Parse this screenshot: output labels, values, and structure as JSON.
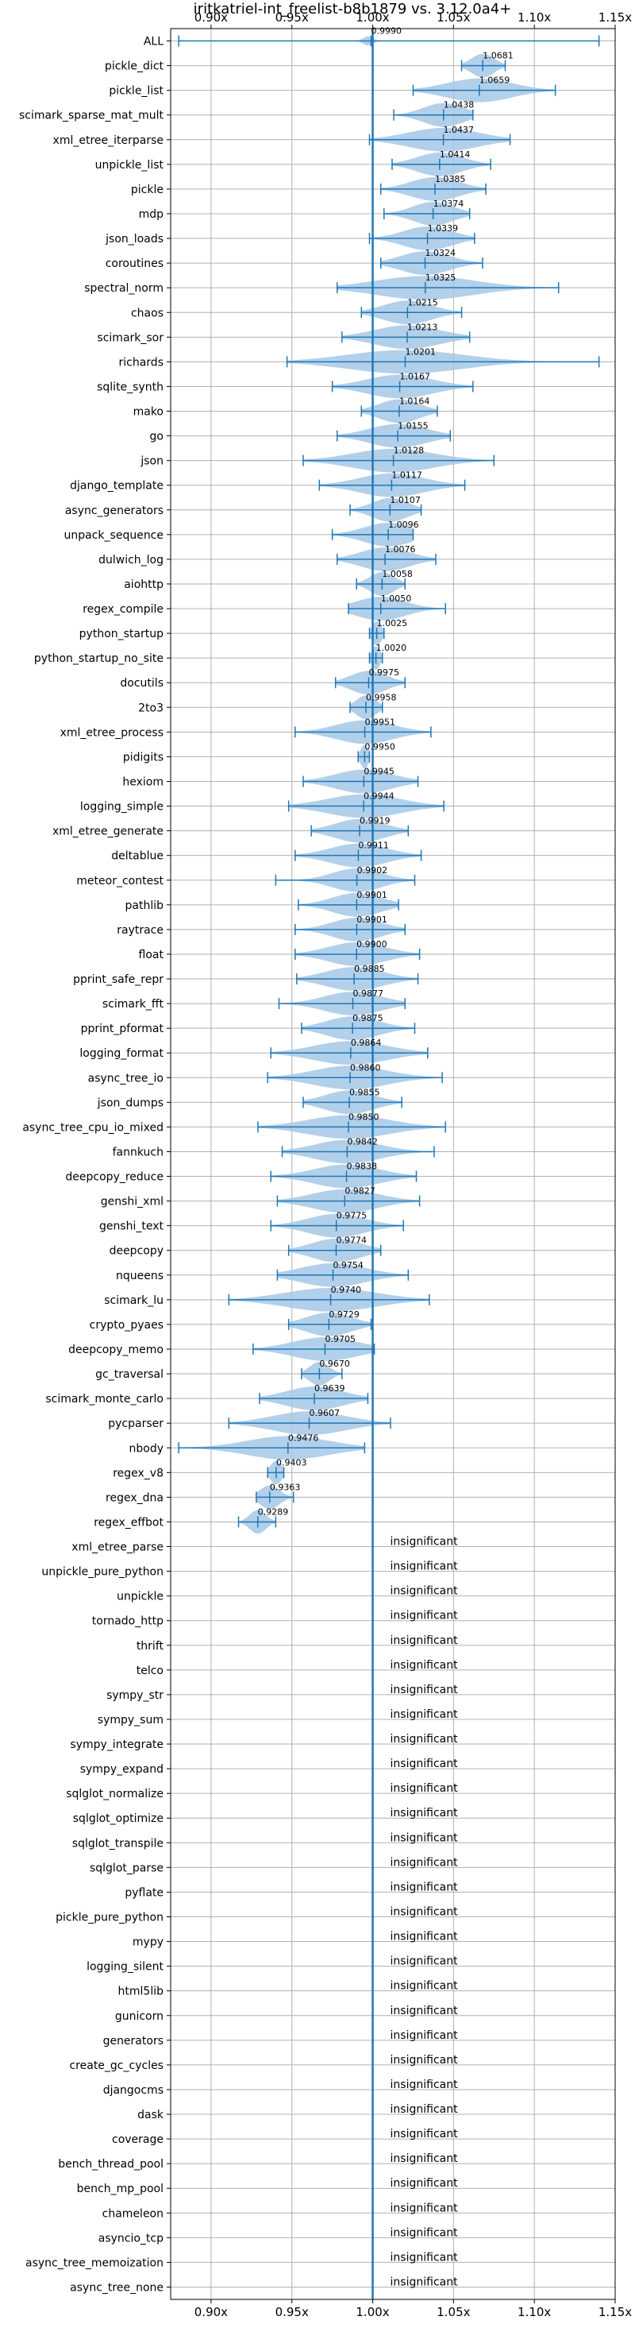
{
  "chart_data": {
    "type": "violin",
    "title": "iritkatriel-int_freelist-b8b1879 vs. 3.12.0a4+",
    "xlim": [
      0.875,
      1.15
    ],
    "x_ticks": [
      {
        "value": 0.9,
        "label": "0.90x"
      },
      {
        "value": 0.95,
        "label": "0.95x"
      },
      {
        "value": 1.0,
        "label": "1.00x"
      },
      {
        "value": 1.05,
        "label": "1.05x"
      },
      {
        "value": 1.1,
        "label": "1.10x"
      },
      {
        "value": 1.15,
        "label": "1.15x"
      }
    ],
    "reference_line": 1.0,
    "grid": true,
    "colors": {
      "line": "#1f77b4",
      "violin": "#a6c8e6",
      "grid": "#b0b0b0"
    },
    "insignificant_label": "insignificant",
    "benchmarks": [
      {
        "name": "ALL",
        "mean": 0.999,
        "label": "0.9990",
        "min": 0.88,
        "max": 1.14,
        "width": 0.003
      },
      {
        "name": "pickle_dict",
        "mean": 1.0681,
        "label": "1.0681",
        "min": 1.055,
        "max": 1.082,
        "width": 0.014
      },
      {
        "name": "pickle_list",
        "mean": 1.0659,
        "label": "1.0659",
        "min": 1.025,
        "max": 1.113,
        "width": 0.04
      },
      {
        "name": "scimark_sparse_mat_mult",
        "mean": 1.0438,
        "label": "1.0438",
        "min": 1.013,
        "max": 1.062,
        "width": 0.025
      },
      {
        "name": "xml_etree_iterparse",
        "mean": 1.0437,
        "label": "1.0437",
        "min": 0.998,
        "max": 1.085,
        "width": 0.043
      },
      {
        "name": "unpickle_list",
        "mean": 1.0414,
        "label": "1.0414",
        "min": 1.012,
        "max": 1.073,
        "width": 0.028
      },
      {
        "name": "pickle",
        "mean": 1.0385,
        "label": "1.0385",
        "min": 1.005,
        "max": 1.07,
        "width": 0.03
      },
      {
        "name": "mdp",
        "mean": 1.0374,
        "label": "1.0374",
        "min": 1.007,
        "max": 1.06,
        "width": 0.025
      },
      {
        "name": "json_loads",
        "mean": 1.0339,
        "label": "1.0339",
        "min": 0.998,
        "max": 1.063,
        "width": 0.03
      },
      {
        "name": "coroutines",
        "mean": 1.0324,
        "label": "1.0324",
        "min": 1.005,
        "max": 1.068,
        "width": 0.03
      },
      {
        "name": "spectral_norm",
        "mean": 1.0325,
        "label": "1.0325",
        "min": 0.978,
        "max": 1.115,
        "width": 0.06
      },
      {
        "name": "chaos",
        "mean": 1.0215,
        "label": "1.0215",
        "min": 0.993,
        "max": 1.055,
        "width": 0.03
      },
      {
        "name": "scimark_sor",
        "mean": 1.0213,
        "label": "1.0213",
        "min": 0.981,
        "max": 1.06,
        "width": 0.04
      },
      {
        "name": "richards",
        "mean": 1.0201,
        "label": "1.0201",
        "min": 0.947,
        "max": 1.14,
        "width": 0.07
      },
      {
        "name": "sqlite_synth",
        "mean": 1.0167,
        "label": "1.0167",
        "min": 0.975,
        "max": 1.062,
        "width": 0.04
      },
      {
        "name": "mako",
        "mean": 1.0164,
        "label": "1.0164",
        "min": 0.993,
        "max": 1.04,
        "width": 0.025
      },
      {
        "name": "go",
        "mean": 1.0155,
        "label": "1.0155",
        "min": 0.978,
        "max": 1.048,
        "width": 0.035
      },
      {
        "name": "json",
        "mean": 1.0128,
        "label": "1.0128",
        "min": 0.957,
        "max": 1.075,
        "width": 0.05
      },
      {
        "name": "django_template",
        "mean": 1.0117,
        "label": "1.0117",
        "min": 0.967,
        "max": 1.057,
        "width": 0.04
      },
      {
        "name": "async_generators",
        "mean": 1.0107,
        "label": "1.0107",
        "min": 0.986,
        "max": 1.03,
        "width": 0.022
      },
      {
        "name": "unpack_sequence",
        "mean": 1.0096,
        "label": "1.0096",
        "min": 0.975,
        "max": 1.025,
        "width": 0.03
      },
      {
        "name": "dulwich_log",
        "mean": 1.0076,
        "label": "1.0076",
        "min": 0.978,
        "max": 1.039,
        "width": 0.03
      },
      {
        "name": "aiohttp",
        "mean": 1.0058,
        "label": "1.0058",
        "min": 0.99,
        "max": 1.02,
        "width": 0.015
      },
      {
        "name": "regex_compile",
        "mean": 1.005,
        "label": "1.0050",
        "min": 0.985,
        "max": 1.045,
        "width": 0.03
      },
      {
        "name": "python_startup",
        "mean": 1.0025,
        "label": "1.0025",
        "min": 0.998,
        "max": 1.007,
        "width": 0.006
      },
      {
        "name": "python_startup_no_site",
        "mean": 1.002,
        "label": "1.0020",
        "min": 0.998,
        "max": 1.006,
        "width": 0.005
      },
      {
        "name": "docutils",
        "mean": 0.9975,
        "label": "0.9975",
        "min": 0.977,
        "max": 1.02,
        "width": 0.022
      },
      {
        "name": "2to3",
        "mean": 0.9958,
        "label": "0.9958",
        "min": 0.986,
        "max": 1.006,
        "width": 0.012
      },
      {
        "name": "xml_etree_process",
        "mean": 0.9951,
        "label": "0.9951",
        "min": 0.952,
        "max": 1.036,
        "width": 0.035
      },
      {
        "name": "pidigits",
        "mean": 0.995,
        "label": "0.9950",
        "min": 0.991,
        "max": 0.998,
        "width": 0.005
      },
      {
        "name": "hexiom",
        "mean": 0.9945,
        "label": "0.9945",
        "min": 0.957,
        "max": 1.028,
        "width": 0.035
      },
      {
        "name": "logging_simple",
        "mean": 0.9944,
        "label": "0.9944",
        "min": 0.948,
        "max": 1.044,
        "width": 0.045
      },
      {
        "name": "xml_etree_generate",
        "mean": 0.9919,
        "label": "0.9919",
        "min": 0.962,
        "max": 1.022,
        "width": 0.03
      },
      {
        "name": "deltablue",
        "mean": 0.9911,
        "label": "0.9911",
        "min": 0.952,
        "max": 1.03,
        "width": 0.035
      },
      {
        "name": "meteor_contest",
        "mean": 0.9902,
        "label": "0.9902",
        "min": 0.94,
        "max": 1.026,
        "width": 0.03
      },
      {
        "name": "pathlib",
        "mean": 0.9901,
        "label": "0.9901",
        "min": 0.954,
        "max": 1.016,
        "width": 0.03
      },
      {
        "name": "raytrace",
        "mean": 0.9901,
        "label": "0.9901",
        "min": 0.952,
        "max": 1.02,
        "width": 0.03
      },
      {
        "name": "float",
        "mean": 0.99,
        "label": "0.9900",
        "min": 0.952,
        "max": 1.029,
        "width": 0.035
      },
      {
        "name": "pprint_safe_repr",
        "mean": 0.9885,
        "label": "0.9885",
        "min": 0.953,
        "max": 1.028,
        "width": 0.035
      },
      {
        "name": "scimark_fft",
        "mean": 0.9877,
        "label": "0.9877",
        "min": 0.942,
        "max": 1.02,
        "width": 0.035
      },
      {
        "name": "pprint_pformat",
        "mean": 0.9875,
        "label": "0.9875",
        "min": 0.956,
        "max": 1.026,
        "width": 0.032
      },
      {
        "name": "logging_format",
        "mean": 0.9864,
        "label": "0.9864",
        "min": 0.937,
        "max": 1.034,
        "width": 0.045
      },
      {
        "name": "async_tree_io",
        "mean": 0.986,
        "label": "0.9860",
        "min": 0.935,
        "max": 1.043,
        "width": 0.045
      },
      {
        "name": "json_dumps",
        "mean": 0.9855,
        "label": "0.9855",
        "min": 0.957,
        "max": 1.018,
        "width": 0.03
      },
      {
        "name": "async_tree_cpu_io_mixed",
        "mean": 0.985,
        "label": "0.9850",
        "min": 0.929,
        "max": 1.045,
        "width": 0.05
      },
      {
        "name": "fannkuch",
        "mean": 0.9842,
        "label": "0.9842",
        "min": 0.944,
        "max": 1.038,
        "width": 0.04
      },
      {
        "name": "deepcopy_reduce",
        "mean": 0.9838,
        "label": "0.9838",
        "min": 0.937,
        "max": 1.027,
        "width": 0.04
      },
      {
        "name": "genshi_xml",
        "mean": 0.9827,
        "label": "0.9827",
        "min": 0.941,
        "max": 1.029,
        "width": 0.04
      },
      {
        "name": "genshi_text",
        "mean": 0.9775,
        "label": "0.9775",
        "min": 0.937,
        "max": 1.019,
        "width": 0.035
      },
      {
        "name": "deepcopy",
        "mean": 0.9774,
        "label": "0.9774",
        "min": 0.948,
        "max": 1.005,
        "width": 0.03
      },
      {
        "name": "nqueens",
        "mean": 0.9754,
        "label": "0.9754",
        "min": 0.941,
        "max": 1.022,
        "width": 0.04
      },
      {
        "name": "scimark_lu",
        "mean": 0.974,
        "label": "0.9740",
        "min": 0.911,
        "max": 1.035,
        "width": 0.055
      },
      {
        "name": "crypto_pyaes",
        "mean": 0.9729,
        "label": "0.9729",
        "min": 0.948,
        "max": 0.999,
        "width": 0.028
      },
      {
        "name": "deepcopy_memo",
        "mean": 0.9705,
        "label": "0.9705",
        "min": 0.926,
        "max": 1.001,
        "width": 0.04
      },
      {
        "name": "gc_traversal",
        "mean": 0.967,
        "label": "0.9670",
        "min": 0.956,
        "max": 0.981,
        "width": 0.012
      },
      {
        "name": "scimark_monte_carlo",
        "mean": 0.9639,
        "label": "0.9639",
        "min": 0.93,
        "max": 0.997,
        "width": 0.035
      },
      {
        "name": "pycparser",
        "mean": 0.9607,
        "label": "0.9607",
        "min": 0.911,
        "max": 1.011,
        "width": 0.045
      },
      {
        "name": "nbody",
        "mean": 0.9476,
        "label": "0.9476",
        "min": 0.88,
        "max": 0.995,
        "width": 0.05
      },
      {
        "name": "regex_v8",
        "mean": 0.9403,
        "label": "0.9403",
        "min": 0.935,
        "max": 0.945,
        "width": 0.007
      },
      {
        "name": "regex_dna",
        "mean": 0.9363,
        "label": "0.9363",
        "min": 0.928,
        "max": 0.951,
        "width": 0.012
      },
      {
        "name": "regex_effbot",
        "mean": 0.9289,
        "label": "0.9289",
        "min": 0.917,
        "max": 0.94,
        "width": 0.01
      },
      {
        "name": "xml_etree_parse",
        "insignificant": true
      },
      {
        "name": "unpickle_pure_python",
        "insignificant": true
      },
      {
        "name": "unpickle",
        "insignificant": true
      },
      {
        "name": "tornado_http",
        "insignificant": true
      },
      {
        "name": "thrift",
        "insignificant": true
      },
      {
        "name": "telco",
        "insignificant": true
      },
      {
        "name": "sympy_str",
        "insignificant": true
      },
      {
        "name": "sympy_sum",
        "insignificant": true
      },
      {
        "name": "sympy_integrate",
        "insignificant": true
      },
      {
        "name": "sympy_expand",
        "insignificant": true
      },
      {
        "name": "sqlglot_normalize",
        "insignificant": true
      },
      {
        "name": "sqlglot_optimize",
        "insignificant": true
      },
      {
        "name": "sqlglot_transpile",
        "insignificant": true
      },
      {
        "name": "sqlglot_parse",
        "insignificant": true
      },
      {
        "name": "pyflate",
        "insignificant": true
      },
      {
        "name": "pickle_pure_python",
        "insignificant": true
      },
      {
        "name": "mypy",
        "insignificant": true
      },
      {
        "name": "logging_silent",
        "insignificant": true
      },
      {
        "name": "html5lib",
        "insignificant": true
      },
      {
        "name": "gunicorn",
        "insignificant": true
      },
      {
        "name": "generators",
        "insignificant": true
      },
      {
        "name": "create_gc_cycles",
        "insignificant": true
      },
      {
        "name": "djangocms",
        "insignificant": true
      },
      {
        "name": "dask",
        "insignificant": true
      },
      {
        "name": "coverage",
        "insignificant": true
      },
      {
        "name": "bench_thread_pool",
        "insignificant": true
      },
      {
        "name": "bench_mp_pool",
        "insignificant": true
      },
      {
        "name": "chameleon",
        "insignificant": true
      },
      {
        "name": "asyncio_tcp",
        "insignificant": true
      },
      {
        "name": "async_tree_memoization",
        "insignificant": true
      },
      {
        "name": "async_tree_none",
        "insignificant": true
      }
    ]
  }
}
